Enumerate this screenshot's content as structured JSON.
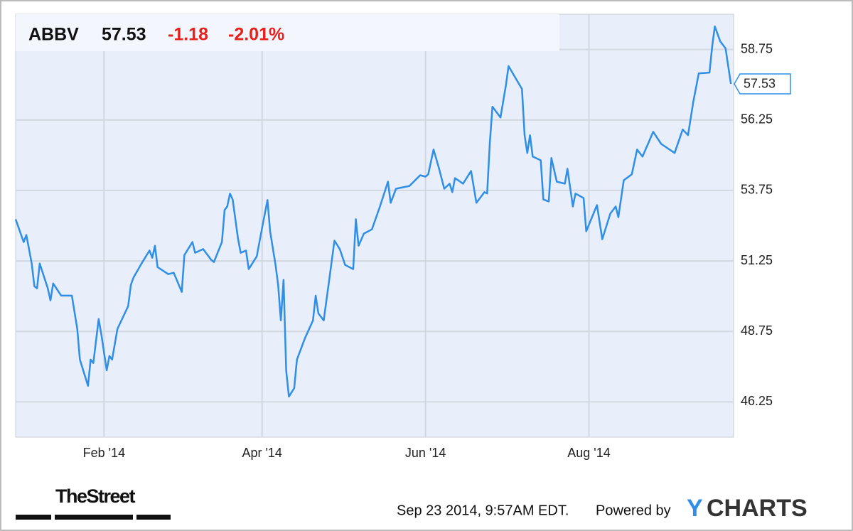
{
  "header": {
    "ticker": "ABBV",
    "price": "57.53",
    "change": "-1.18",
    "change_percent": "-2.01%"
  },
  "chart_data": {
    "type": "line",
    "x": [
      -2,
      1,
      2,
      4,
      5,
      6,
      7,
      10,
      11,
      12,
      15,
      19,
      21,
      22,
      25,
      26,
      27,
      29,
      30,
      32,
      33,
      34,
      36,
      40,
      41,
      42,
      45,
      48,
      49,
      50,
      51,
      55,
      57,
      60,
      61,
      64,
      65,
      68,
      71,
      72,
      75,
      76,
      77,
      78,
      79,
      81,
      82,
      84,
      85,
      88,
      90,
      92,
      93,
      95,
      96,
      97,
      98,
      99,
      100,
      102,
      103,
      106,
      109,
      110,
      111,
      113,
      115,
      117,
      119,
      121,
      124,
      125,
      126,
      128,
      131,
      134,
      137,
      138,
      140,
      145,
      149,
      151,
      152,
      154,
      156,
      158,
      160,
      161,
      162,
      165,
      168,
      170,
      173,
      174,
      175,
      176,
      179,
      181,
      182,
      187,
      188,
      189,
      190,
      191,
      194,
      195,
      197,
      198,
      200,
      203,
      204,
      206,
      207,
      210,
      211,
      215,
      217,
      220,
      222,
      223,
      225,
      228,
      230,
      232,
      236,
      239,
      244,
      247,
      249,
      251,
      253,
      257,
      258,
      259,
      261,
      263,
      265
    ],
    "series": [
      {
        "color": "#2f8ee5",
        "values": [
          52.73,
          51.92,
          52.17,
          51.16,
          50.35,
          50.28,
          51.16,
          50.28,
          49.85,
          50.45,
          50.02,
          50.02,
          48.84,
          47.75,
          46.82,
          47.75,
          47.63,
          49.19,
          48.64,
          47.37,
          47.88,
          47.75,
          48.84,
          49.65,
          50.4,
          50.66,
          51.16,
          51.62,
          51.36,
          51.79,
          51.03,
          50.78,
          50.83,
          50.15,
          51.46,
          51.92,
          51.54,
          51.67,
          51.29,
          51.21,
          51.92,
          53.06,
          53.18,
          53.64,
          53.43,
          52.05,
          51.54,
          51.62,
          50.96,
          51.41,
          52.42,
          53.41,
          52.3,
          51.11,
          50.4,
          49.14,
          50.58,
          47.37,
          46.44,
          46.74,
          47.75,
          48.51,
          49.14,
          50.02,
          49.39,
          49.14,
          50.53,
          51.97,
          51.67,
          51.11,
          50.96,
          52.73,
          51.79,
          52.22,
          52.37,
          53.18,
          54.06,
          53.31,
          53.81,
          53.91,
          54.29,
          54.24,
          54.32,
          55.2,
          54.55,
          53.81,
          53.99,
          53.69,
          54.19,
          53.99,
          54.44,
          53.31,
          53.69,
          53.64,
          55.45,
          56.72,
          56.34,
          57.48,
          58.16,
          57.35,
          55.71,
          55.08,
          55.71,
          54.95,
          54.82,
          53.43,
          53.36,
          54.9,
          54.06,
          53.99,
          54.52,
          53.18,
          53.64,
          53.48,
          52.3,
          53.23,
          52.02,
          52.93,
          53.18,
          52.8,
          54.11,
          54.32,
          55.2,
          54.95,
          55.83,
          55.4,
          55.08,
          55.91,
          55.71,
          56.92,
          57.9,
          57.93,
          58.86,
          59.57,
          59.04,
          58.79,
          57.53
        ]
      }
    ],
    "xlim": [
      -2,
      266
    ],
    "xticks": [
      {
        "value": 31,
        "label": "Feb '14"
      },
      {
        "value": 90,
        "label": "Apr '14"
      },
      {
        "value": 151,
        "label": "Jun '14"
      },
      {
        "value": 212,
        "label": "Aug '14"
      }
    ],
    "ylim": [
      45,
      60
    ],
    "yticks": [
      46.25,
      48.75,
      51.25,
      53.75,
      56.25,
      58.75
    ],
    "grid": true
  },
  "footer": {
    "logo_left": "TheStreet",
    "timestamp": "Sep 23 2014, 9:57AM EDT.",
    "powered_by": "Powered by",
    "logo_y": "Y",
    "logo_rest": "CHARTS"
  }
}
